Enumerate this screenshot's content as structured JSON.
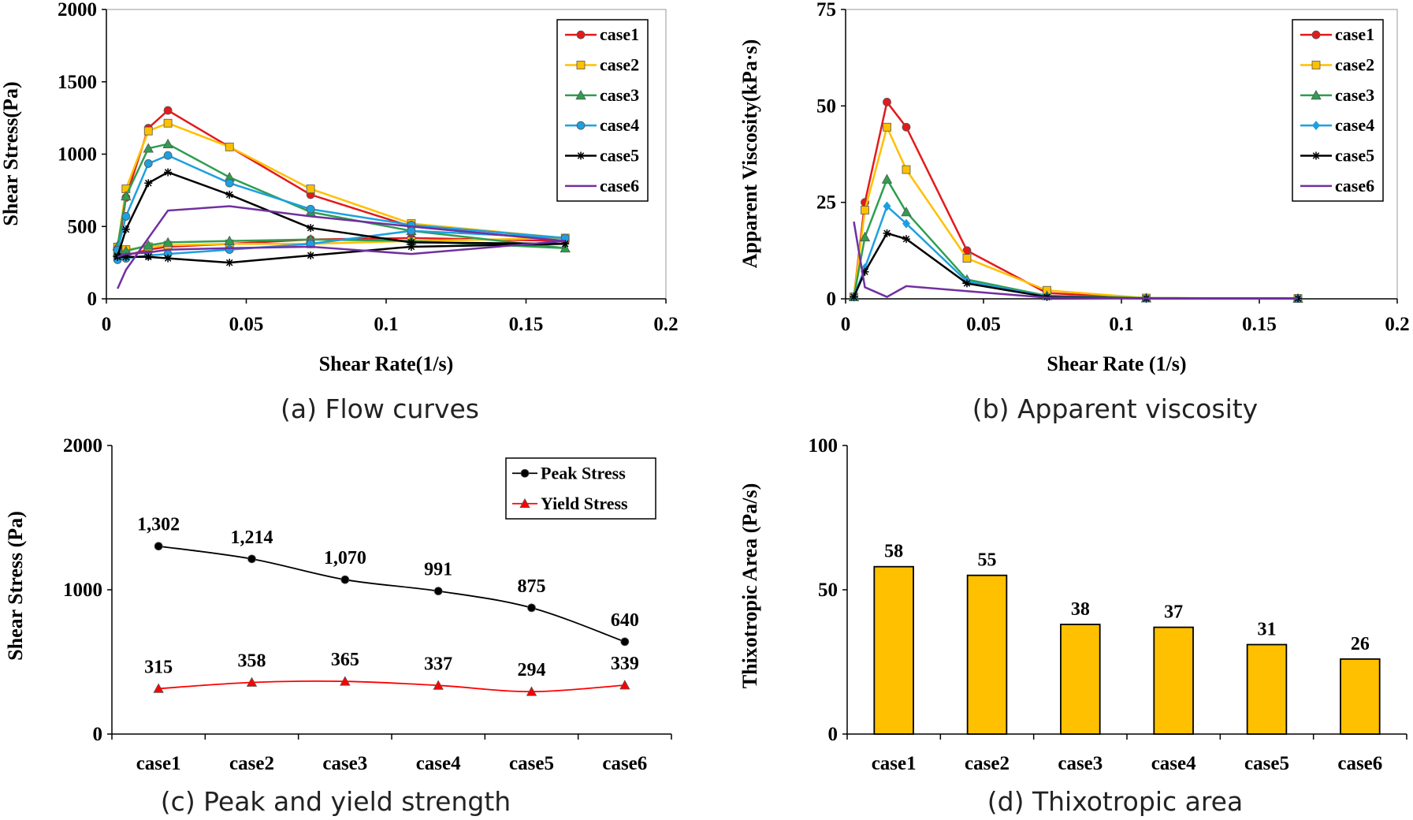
{
  "captions": {
    "a": "(a) Flow curves",
    "b": "(b) Apparent viscosity",
    "c": "(c) Peak and yield strength",
    "d": "(d) Thixotropic area"
  },
  "chart_data": [
    {
      "id": "a",
      "type": "line",
      "title": "",
      "xlabel": "Shear Rate(1/s)",
      "ylabel": "Shear Stress(Pa)",
      "xlim": [
        0,
        0.2
      ],
      "ylim": [
        0,
        2000
      ],
      "xticks": [
        "0",
        "0.05",
        "0.1",
        "0.15",
        "0.2"
      ],
      "yticks": [
        "0",
        "500",
        "1000",
        "1500",
        "2000"
      ],
      "grid": false,
      "legend": "top-right",
      "series": [
        {
          "name": "case1",
          "color": "#e31a1c",
          "marker": "circle",
          "x": [
            0.004,
            0.007,
            0.015,
            0.022,
            0.044,
            0.073,
            0.109,
            0.164,
            0.109,
            0.073,
            0.044,
            0.022,
            0.015,
            0.007,
            0.004
          ],
          "y": [
            315,
            700,
            1180,
            1302,
            1050,
            720,
            500,
            400,
            420,
            410,
            380,
            360,
            340,
            300,
            290
          ]
        },
        {
          "name": "case2",
          "color": "#ffc000",
          "marker": "square",
          "x": [
            0.004,
            0.007,
            0.015,
            0.022,
            0.044,
            0.073,
            0.109,
            0.164,
            0.109,
            0.073,
            0.044,
            0.022,
            0.015,
            0.007,
            0.004
          ],
          "y": [
            358,
            760,
            1160,
            1214,
            1050,
            760,
            520,
            420,
            400,
            380,
            380,
            370,
            360,
            340,
            330
          ]
        },
        {
          "name": "case3",
          "color": "#2e9e4f",
          "marker": "triangle",
          "x": [
            0.004,
            0.007,
            0.015,
            0.022,
            0.044,
            0.073,
            0.109,
            0.164,
            0.109,
            0.073,
            0.044,
            0.022,
            0.015,
            0.007,
            0.004
          ],
          "y": [
            365,
            710,
            1040,
            1070,
            840,
            600,
            470,
            350,
            400,
            410,
            400,
            390,
            370,
            330,
            320
          ]
        },
        {
          "name": "case4",
          "color": "#1ea0e0",
          "marker": "circle",
          "x": [
            0.004,
            0.007,
            0.015,
            0.022,
            0.044,
            0.073,
            0.109,
            0.164,
            0.109,
            0.073,
            0.044,
            0.022,
            0.015,
            0.007,
            0.004
          ],
          "y": [
            337,
            570,
            935,
            991,
            800,
            620,
            510,
            420,
            470,
            380,
            340,
            310,
            300,
            280,
            270
          ]
        },
        {
          "name": "case5",
          "color": "#000000",
          "marker": "star",
          "x": [
            0.004,
            0.007,
            0.015,
            0.022,
            0.044,
            0.073,
            0.109,
            0.164,
            0.109,
            0.073,
            0.044,
            0.022,
            0.015,
            0.007,
            0.004
          ],
          "y": [
            294,
            480,
            800,
            875,
            720,
            490,
            390,
            380,
            360,
            300,
            250,
            280,
            290,
            290,
            290
          ]
        },
        {
          "name": "case6",
          "color": "#7030a0",
          "marker": "none",
          "x": [
            0.004,
            0.007,
            0.015,
            0.022,
            0.044,
            0.073,
            0.109,
            0.164,
            0.109,
            0.073,
            0.044,
            0.022,
            0.015,
            0.007,
            0.004
          ],
          "y": [
            70,
            200,
            420,
            610,
            640,
            570,
            500,
            400,
            310,
            360,
            350,
            340,
            320,
            310,
            290
          ]
        }
      ]
    },
    {
      "id": "b",
      "type": "line",
      "title": "",
      "xlabel": "Shear Rate (1/s)",
      "ylabel": "Apparent Viscosity(kPa·s)",
      "xlim": [
        0,
        0.2
      ],
      "ylim": [
        0,
        75
      ],
      "xticks": [
        "0",
        "0.05",
        "0.1",
        "0.15",
        "0.2"
      ],
      "yticks": [
        "0",
        "25",
        "50",
        "75"
      ],
      "grid": false,
      "legend": "top-right",
      "series": [
        {
          "name": "case1",
          "color": "#e31a1c",
          "marker": "circle",
          "x": [
            0.003,
            0.007,
            0.015,
            0.022,
            0.044,
            0.073,
            0.109,
            0.164
          ],
          "y": [
            0.5,
            25,
            51,
            44.5,
            12.5,
            1.5,
            0.2,
            0.1
          ]
        },
        {
          "name": "case2",
          "color": "#ffc000",
          "marker": "square",
          "x": [
            0.003,
            0.007,
            0.015,
            0.022,
            0.044,
            0.073,
            0.109,
            0.164
          ],
          "y": [
            0.5,
            23,
            44.5,
            33.5,
            10.5,
            2.2,
            0.2,
            0.1
          ]
        },
        {
          "name": "case3",
          "color": "#2e9e4f",
          "marker": "triangle",
          "x": [
            0.003,
            0.007,
            0.015,
            0.022,
            0.044,
            0.073,
            0.109,
            0.164
          ],
          "y": [
            0.5,
            16,
            31,
            22.5,
            5,
            0.8,
            0.2,
            0.1
          ]
        },
        {
          "name": "case4",
          "color": "#1ea0e0",
          "marker": "diamond",
          "x": [
            0.003,
            0.007,
            0.015,
            0.022,
            0.044,
            0.073,
            0.109,
            0.164
          ],
          "y": [
            0.5,
            8,
            24,
            19.5,
            4.5,
            0.6,
            0.1,
            0.1
          ]
        },
        {
          "name": "case5",
          "color": "#000000",
          "marker": "star",
          "x": [
            0.003,
            0.007,
            0.015,
            0.022,
            0.044,
            0.073,
            0.109,
            0.164
          ],
          "y": [
            0.5,
            7,
            17,
            15.5,
            4,
            0.5,
            0.1,
            0.1
          ]
        },
        {
          "name": "case6",
          "color": "#7030a0",
          "marker": "none",
          "x": [
            0.003,
            0.007,
            0.015,
            0.022,
            0.044,
            0.073,
            0.109,
            0.164
          ],
          "y": [
            20,
            3,
            0.5,
            3.3,
            2,
            0.3,
            0.1,
            0.1
          ]
        }
      ]
    },
    {
      "id": "c",
      "type": "line",
      "title": "",
      "xlabel": "",
      "ylabel": "Shear Stress (Pa)",
      "categories": [
        "case1",
        "case2",
        "case3",
        "case4",
        "case5",
        "case6"
      ],
      "ylim": [
        0,
        2000
      ],
      "yticks": [
        "0",
        "1000",
        "2000"
      ],
      "grid": false,
      "legend": "top-right",
      "series": [
        {
          "name": "Peak Stress",
          "color": "#000000",
          "marker": "circle",
          "values": [
            1302,
            1214,
            1070,
            991,
            875,
            640
          ],
          "labels": [
            "1,302",
            "1,214",
            "1,070",
            "991",
            "875",
            "640"
          ]
        },
        {
          "name": "Yield Stress",
          "color": "#ff0000",
          "marker": "triangle",
          "values": [
            315,
            358,
            365,
            337,
            294,
            339
          ],
          "labels": [
            "315",
            "358",
            "365",
            "337",
            "294",
            "339"
          ]
        }
      ]
    },
    {
      "id": "d",
      "type": "bar",
      "title": "",
      "xlabel": "",
      "ylabel": "Thixotropic Area (Pa/s)",
      "categories": [
        "case1",
        "case2",
        "case3",
        "case4",
        "case5",
        "case6"
      ],
      "values": [
        58,
        55,
        38,
        37,
        31,
        26
      ],
      "labels": [
        "58",
        "55",
        "38",
        "37",
        "31",
        "26"
      ],
      "bar_color": "#ffc000",
      "ylim": [
        0,
        100
      ],
      "yticks": [
        "0",
        "50",
        "100"
      ],
      "grid": false
    }
  ]
}
